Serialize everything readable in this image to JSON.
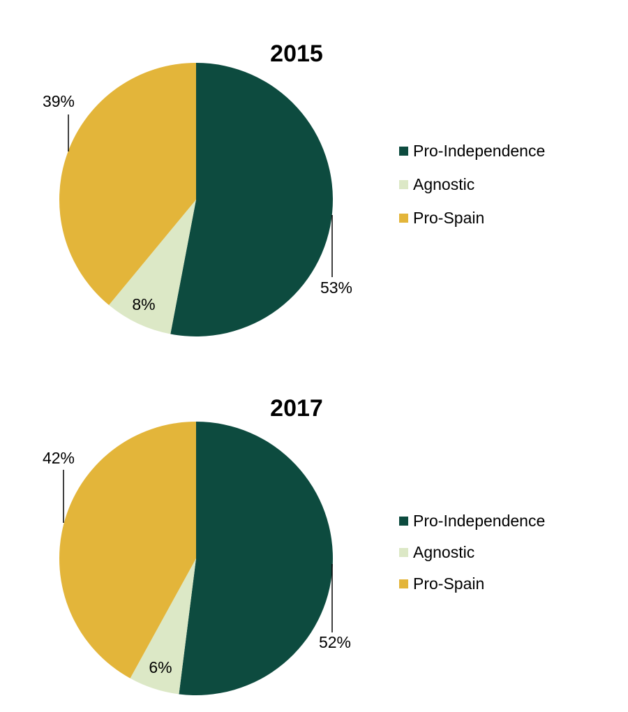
{
  "chart_data": [
    {
      "type": "pie",
      "title": "2015",
      "series": [
        {
          "name": "Pro-Independence",
          "value": 53,
          "label": "53%",
          "color": "#0d4b3f"
        },
        {
          "name": "Agnostic",
          "value": 8,
          "label": "8%",
          "color": "#dce8c6"
        },
        {
          "name": "Pro-Spain",
          "value": 39,
          "label": "39%",
          "color": "#e3b53a"
        }
      ],
      "legend_position": "right"
    },
    {
      "type": "pie",
      "title": "2017",
      "series": [
        {
          "name": "Pro-Independence",
          "value": 52,
          "label": "52%",
          "color": "#0d4b3f"
        },
        {
          "name": "Agnostic",
          "value": 6,
          "label": "6%",
          "color": "#dce8c6"
        },
        {
          "name": "Pro-Spain",
          "value": 42,
          "label": "42%",
          "color": "#e3b53a"
        }
      ],
      "legend_position": "right"
    }
  ]
}
